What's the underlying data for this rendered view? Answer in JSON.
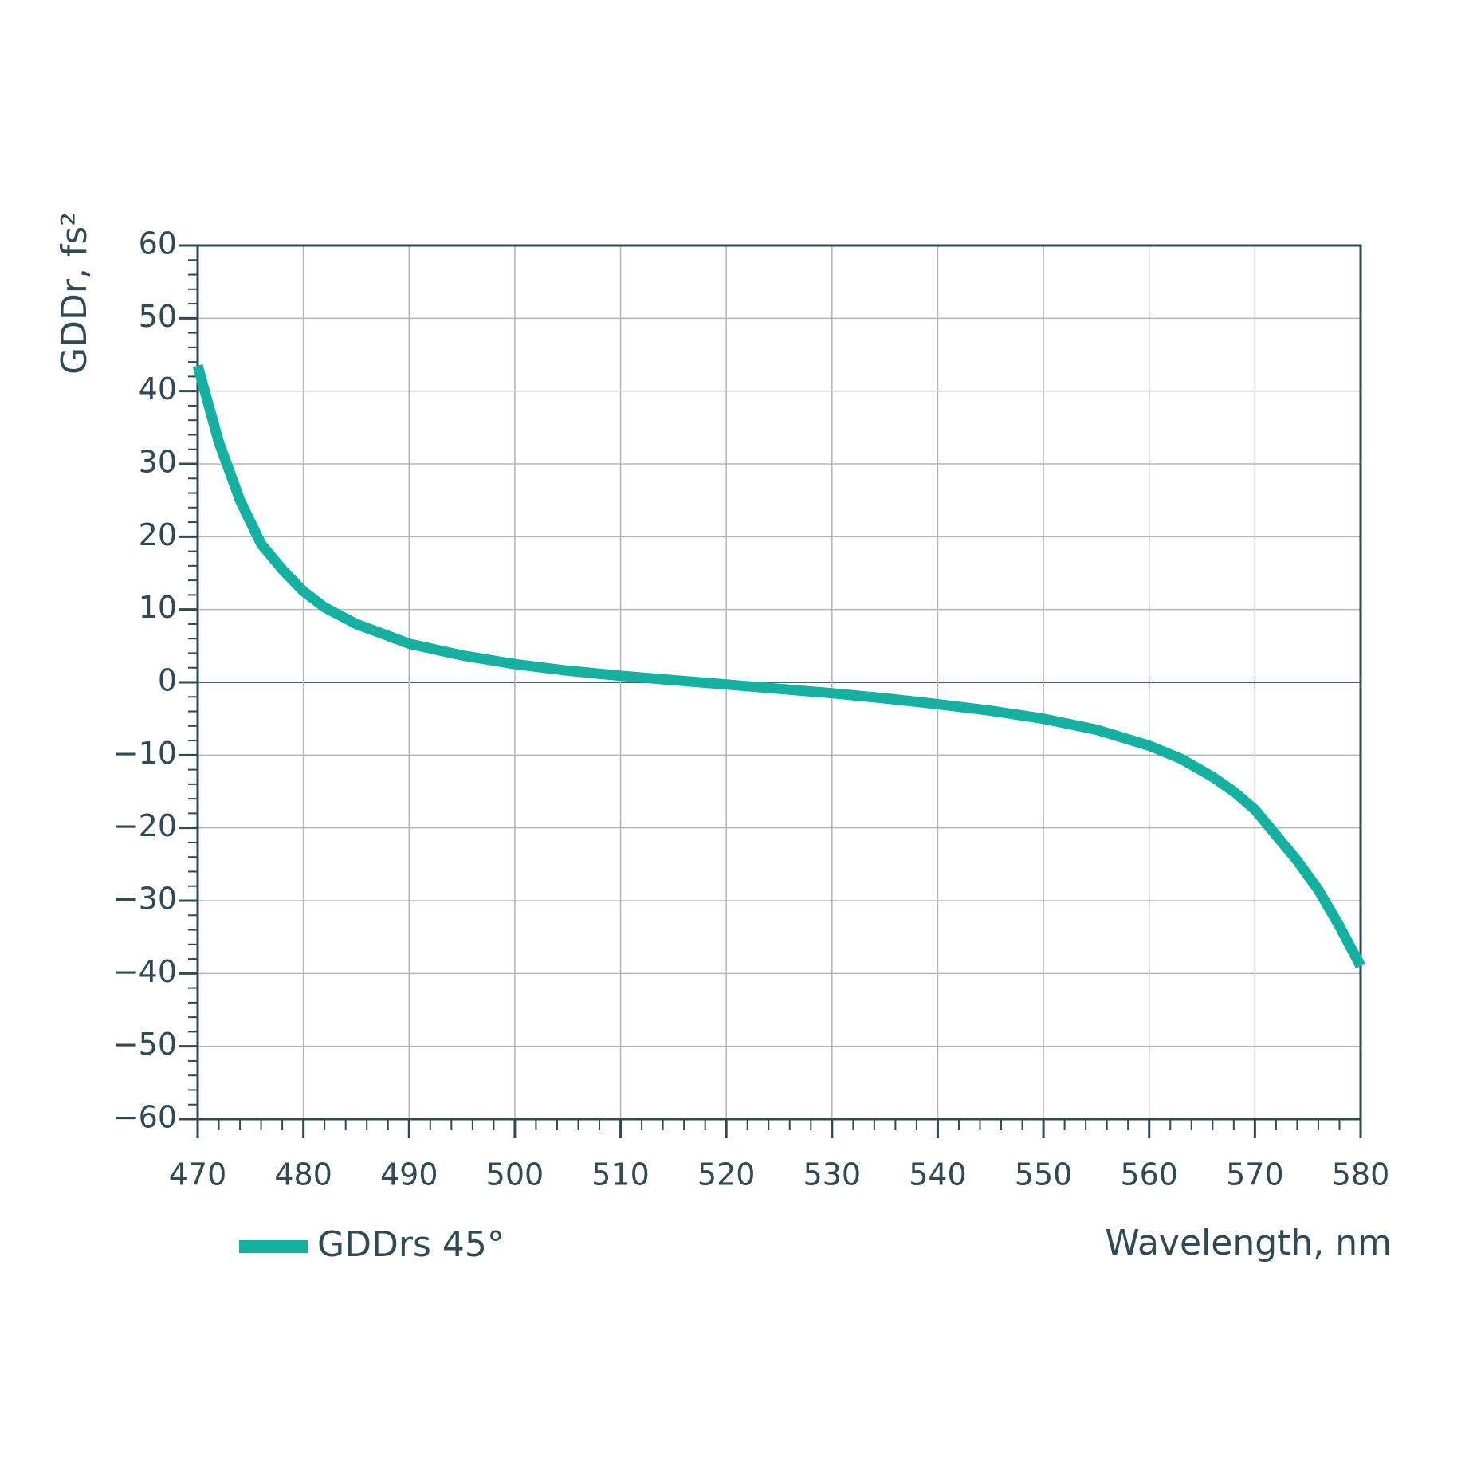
{
  "chart_data": {
    "type": "line",
    "y_label": "GDDr, fs²",
    "x_label": "Wavelength, nm",
    "x": [
      470,
      472,
      474,
      476,
      478,
      480,
      482,
      485,
      490,
      495,
      500,
      505,
      510,
      515,
      520,
      525,
      530,
      535,
      540,
      545,
      550,
      555,
      560,
      563,
      566,
      568,
      570,
      572,
      574,
      576,
      578,
      580
    ],
    "series": [
      {
        "name": "GDDrs 45°",
        "color": "#14b1a1",
        "values": [
          43.5,
          33,
          25,
          19,
          15.5,
          12.5,
          10.3,
          8,
          5.3,
          3.7,
          2.5,
          1.6,
          0.9,
          0.3,
          -0.3,
          -0.9,
          -1.5,
          -2.2,
          -3,
          -3.9,
          -5,
          -6.5,
          -8.7,
          -10.5,
          -13,
          -15,
          -17.5,
          -21,
          -24.5,
          -28.5,
          -33.5,
          -39
        ]
      }
    ],
    "xlim": [
      470,
      580
    ],
    "xticks": [
      470,
      480,
      490,
      500,
      510,
      520,
      530,
      540,
      550,
      560,
      570,
      580
    ],
    "ylim": [
      -60,
      60
    ],
    "yticks": [
      {
        "value": -60,
        "label": "−60"
      },
      {
        "value": -50,
        "label": "−50"
      },
      {
        "value": -40,
        "label": "−40"
      },
      {
        "value": -30,
        "label": "−30"
      },
      {
        "value": -20,
        "label": "−20"
      },
      {
        "value": -10,
        "label": "−10"
      },
      0,
      10,
      20,
      30,
      40,
      50,
      60
    ],
    "grid": true
  }
}
